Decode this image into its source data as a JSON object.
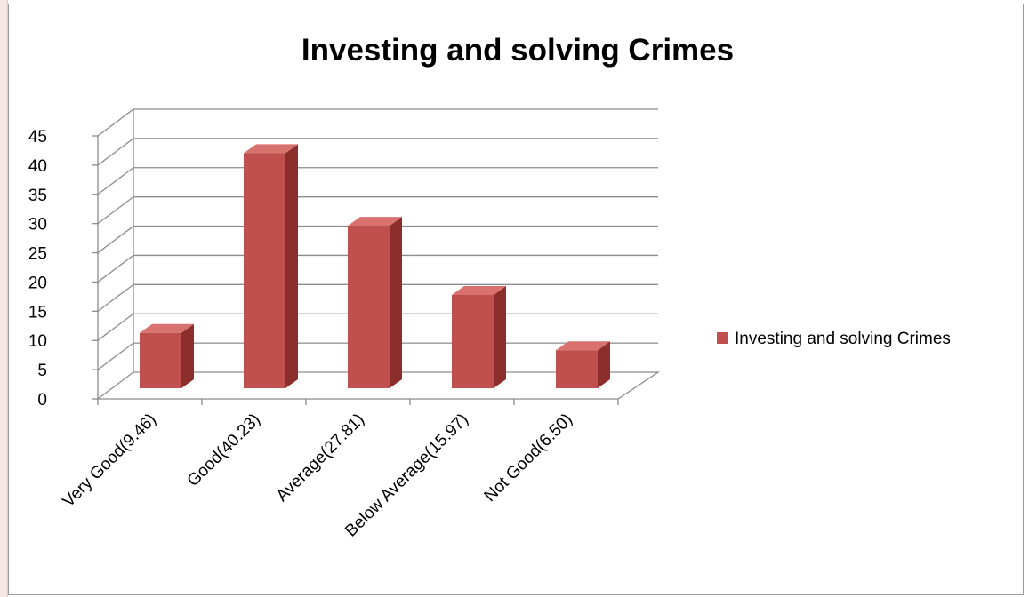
{
  "chart_data": {
    "type": "bar",
    "style": "3d-column",
    "title": "Investing and solving Crimes",
    "xlabel": "",
    "ylabel": "",
    "categories": [
      "Very Good(9.46)",
      "Good(40.23)",
      "Average(27.81)",
      "Below Average(15.97)",
      "Not Good(6.50)"
    ],
    "series": [
      {
        "name": "Investing and solving Crimes",
        "values": [
          9.46,
          40.23,
          27.81,
          15.97,
          6.5
        ]
      }
    ],
    "ylim": [
      0,
      45
    ],
    "yticks": [
      "0",
      "5",
      "10",
      "15",
      "20",
      "25",
      "30",
      "35",
      "40",
      "45"
    ],
    "grid": true,
    "legend_position": "right",
    "colors": {
      "bar_front": "#c0504d",
      "bar_side": "#8c2f2c",
      "bar_top": "#d9716e",
      "grid": "#8c8c8c"
    }
  }
}
